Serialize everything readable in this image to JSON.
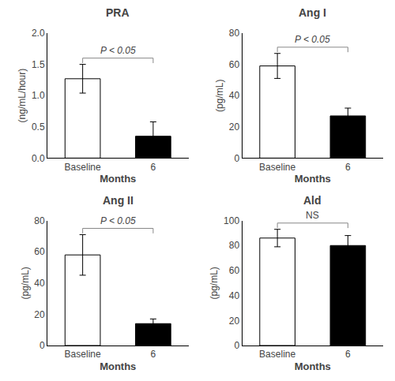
{
  "chart_data": [
    {
      "type": "bar",
      "title": "PRA",
      "ylabel": "(ng/mL/hour)",
      "xlabel": "Months",
      "categories": [
        "Baseline",
        "6"
      ],
      "values": [
        1.27,
        0.35
      ],
      "errors": [
        0.23,
        0.23
      ],
      "colors": [
        "white",
        "black"
      ],
      "ylim": [
        0,
        2.0
      ],
      "yticks": [
        {
          "value": 0,
          "label": "0.0"
        },
        {
          "value": 0.5,
          "label": "0.5"
        },
        {
          "value": 1.0,
          "label": "1.0"
        },
        {
          "value": 1.5,
          "label": "1.5"
        },
        {
          "value": 2.0,
          "label": "2.0"
        }
      ],
      "annotation": "P < 0.05",
      "grid": false
    },
    {
      "type": "bar",
      "title": "Ang I",
      "ylabel": "(pg/mL)",
      "xlabel": "Months",
      "categories": [
        "Baseline",
        "6"
      ],
      "values": [
        59,
        27
      ],
      "errors": [
        8,
        5
      ],
      "colors": [
        "white",
        "black"
      ],
      "ylim": [
        0,
        80
      ],
      "yticks": [
        0,
        20,
        40,
        60,
        80
      ],
      "annotation": "P < 0.05",
      "grid": false
    },
    {
      "type": "bar",
      "title": "Ang II",
      "ylabel": "(pg/mL)",
      "xlabel": "Months",
      "categories": [
        "Baseline",
        "6"
      ],
      "values": [
        58,
        14
      ],
      "errors": [
        13,
        3
      ],
      "colors": [
        "white",
        "black"
      ],
      "ylim": [
        0,
        80
      ],
      "yticks": [
        0,
        20,
        40,
        60,
        80
      ],
      "annotation": "P < 0.05",
      "grid": false
    },
    {
      "type": "bar",
      "title": "Ald",
      "ylabel": "(pg/mL)",
      "xlabel": "Months",
      "categories": [
        "Baseline",
        "6"
      ],
      "values": [
        86,
        80
      ],
      "errors": [
        7,
        8
      ],
      "colors": [
        "white",
        "black"
      ],
      "ylim": [
        0,
        100
      ],
      "yticks": [
        0,
        20,
        40,
        60,
        80,
        100
      ],
      "annotation": "NS",
      "grid": false
    }
  ]
}
